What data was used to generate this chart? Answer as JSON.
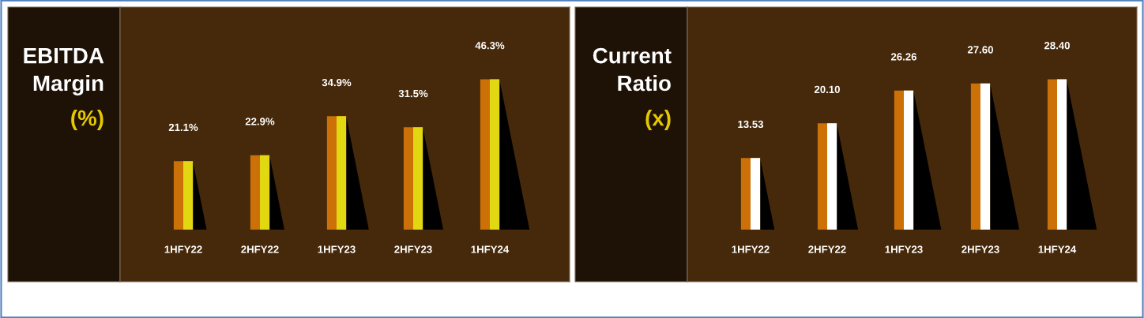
{
  "chart_data": [
    {
      "type": "bar",
      "title": "EBITDA Margin",
      "subtitle": "(%)",
      "categories": [
        "1HFY22",
        "2HFY22",
        "1HFY23",
        "2HFY23",
        "1HFY24"
      ],
      "series": [
        {
          "color": "#cc7008",
          "values": [
            21.1,
            22.9,
            34.9,
            31.5,
            46.3
          ],
          "value_labels": [
            "21.1%",
            "22.9%",
            "34.9%",
            "31.5%",
            "46.3%"
          ]
        }
      ]
    },
    {
      "type": "bar",
      "title": "Current Ratio",
      "subtitle": "(x)",
      "categories": [
        "1HFY22",
        "2HFY22",
        "1HFY23",
        "2HFY23",
        "1HFY24"
      ],
      "series": [
        {
          "color": "#cc7008",
          "values": [
            13.53,
            20.1,
            26.26,
            27.6,
            28.4
          ],
          "value_labels": [
            "13.53",
            "20.10",
            "26.26",
            "27.60",
            "28.40"
          ]
        }
      ]
    }
  ]
}
